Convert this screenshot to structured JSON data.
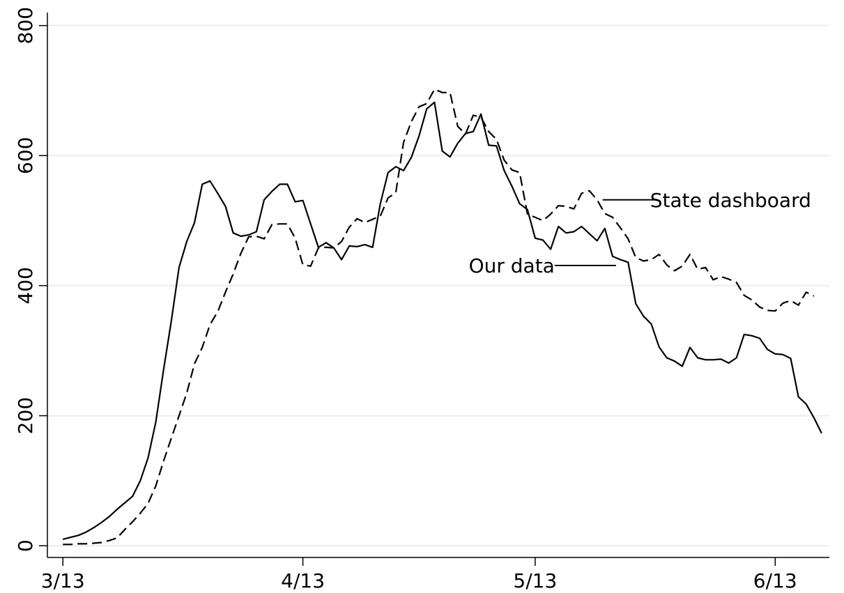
{
  "chart_data": {
    "type": "line",
    "title": "",
    "xlabel": "",
    "ylabel": "",
    "grid": true,
    "legend": "none",
    "x_ticks": [
      "3/13",
      "4/13",
      "5/13",
      "6/13"
    ],
    "x_tick_dates": [
      "2020-03-13",
      "2020-04-13",
      "2020-05-13",
      "2020-06-13"
    ],
    "xlim": [
      "2020-03-11",
      "2020-06-20"
    ],
    "y_ticks": [
      0,
      200,
      400,
      600,
      800
    ],
    "ylim": [
      -18,
      820
    ],
    "series": [
      {
        "name": "Our data",
        "style": "solid",
        "points": [
          [
            "2020-03-13",
            10
          ],
          [
            "2020-03-14",
            13
          ],
          [
            "2020-03-15",
            16
          ],
          [
            "2020-03-16",
            21
          ],
          [
            "2020-03-17",
            28
          ],
          [
            "2020-03-18",
            36
          ],
          [
            "2020-03-19",
            45
          ],
          [
            "2020-03-20",
            56
          ],
          [
            "2020-03-21",
            66
          ],
          [
            "2020-03-22",
            76
          ],
          [
            "2020-03-23",
            100
          ],
          [
            "2020-03-24",
            135
          ],
          [
            "2020-03-25",
            190
          ],
          [
            "2020-03-26",
            270
          ],
          [
            "2020-03-27",
            345
          ],
          [
            "2020-03-28",
            428
          ],
          [
            "2020-03-29",
            468
          ],
          [
            "2020-03-30",
            497
          ],
          [
            "2020-03-31",
            556
          ],
          [
            "2020-04-01",
            561
          ],
          [
            "2020-04-02",
            542
          ],
          [
            "2020-04-03",
            522
          ],
          [
            "2020-04-04",
            481
          ],
          [
            "2020-04-05",
            476
          ],
          [
            "2020-04-06",
            478
          ],
          [
            "2020-04-07",
            483
          ],
          [
            "2020-04-08",
            532
          ],
          [
            "2020-04-09",
            545
          ],
          [
            "2020-04-10",
            556
          ],
          [
            "2020-04-11",
            556
          ],
          [
            "2020-04-12",
            529
          ],
          [
            "2020-04-13",
            531
          ],
          [
            "2020-04-14",
            495
          ],
          [
            "2020-04-15",
            459
          ],
          [
            "2020-04-16",
            466
          ],
          [
            "2020-04-17",
            458
          ],
          [
            "2020-04-18",
            440
          ],
          [
            "2020-04-19",
            461
          ],
          [
            "2020-04-20",
            460
          ],
          [
            "2020-04-21",
            463
          ],
          [
            "2020-04-22",
            459
          ],
          [
            "2020-04-23",
            526
          ],
          [
            "2020-04-24",
            574
          ],
          [
            "2020-04-25",
            583
          ],
          [
            "2020-04-26",
            577
          ],
          [
            "2020-04-27",
            597
          ],
          [
            "2020-04-28",
            630
          ],
          [
            "2020-04-29",
            672
          ],
          [
            "2020-04-30",
            682
          ],
          [
            "2020-05-01",
            607
          ],
          [
            "2020-05-02",
            598
          ],
          [
            "2020-05-03",
            619
          ],
          [
            "2020-05-04",
            634
          ],
          [
            "2020-05-05",
            637
          ],
          [
            "2020-05-06",
            664
          ],
          [
            "2020-05-07",
            616
          ],
          [
            "2020-05-08",
            615
          ],
          [
            "2020-05-09",
            577
          ],
          [
            "2020-05-10",
            553
          ],
          [
            "2020-05-11",
            526
          ],
          [
            "2020-05-12",
            517
          ],
          [
            "2020-05-13",
            473
          ],
          [
            "2020-05-14",
            470
          ],
          [
            "2020-05-15",
            456
          ],
          [
            "2020-05-16",
            491
          ],
          [
            "2020-05-17",
            481
          ],
          [
            "2020-05-18",
            483
          ],
          [
            "2020-05-19",
            491
          ],
          [
            "2020-05-20",
            480
          ],
          [
            "2020-05-21",
            469
          ],
          [
            "2020-05-22",
            488
          ],
          [
            "2020-05-23",
            445
          ],
          [
            "2020-05-24",
            440
          ],
          [
            "2020-05-25",
            436
          ],
          [
            "2020-05-26",
            372
          ],
          [
            "2020-05-27",
            353
          ],
          [
            "2020-05-28",
            341
          ],
          [
            "2020-05-29",
            306
          ],
          [
            "2020-05-30",
            289
          ],
          [
            "2020-05-31",
            284
          ],
          [
            "2020-06-01",
            276
          ],
          [
            "2020-06-02",
            305
          ],
          [
            "2020-06-03",
            289
          ],
          [
            "2020-06-04",
            286
          ],
          [
            "2020-06-05",
            286
          ],
          [
            "2020-06-06",
            287
          ],
          [
            "2020-06-07",
            281
          ],
          [
            "2020-06-08",
            289
          ],
          [
            "2020-06-09",
            325
          ],
          [
            "2020-06-10",
            323
          ],
          [
            "2020-06-11",
            319
          ],
          [
            "2020-06-12",
            302
          ],
          [
            "2020-06-13",
            295
          ],
          [
            "2020-06-14",
            294
          ],
          [
            "2020-06-15",
            288
          ],
          [
            "2020-06-16",
            229
          ],
          [
            "2020-06-17",
            218
          ],
          [
            "2020-06-18",
            197
          ],
          [
            "2020-06-19",
            173
          ]
        ]
      },
      {
        "name": "State dashboard",
        "style": "dashed",
        "points": [
          [
            "2020-03-13",
            2
          ],
          [
            "2020-03-14",
            2
          ],
          [
            "2020-03-15",
            3
          ],
          [
            "2020-03-16",
            3
          ],
          [
            "2020-03-17",
            4
          ],
          [
            "2020-03-18",
            5
          ],
          [
            "2020-03-19",
            8
          ],
          [
            "2020-03-20",
            12
          ],
          [
            "2020-03-21",
            25
          ],
          [
            "2020-03-22",
            37
          ],
          [
            "2020-03-23",
            50
          ],
          [
            "2020-03-24",
            65
          ],
          [
            "2020-03-25",
            92
          ],
          [
            "2020-03-26",
            130
          ],
          [
            "2020-03-27",
            165
          ],
          [
            "2020-03-28",
            200
          ],
          [
            "2020-03-29",
            235
          ],
          [
            "2020-03-30",
            280
          ],
          [
            "2020-03-31",
            305
          ],
          [
            "2020-04-01",
            340
          ],
          [
            "2020-04-02",
            360
          ],
          [
            "2020-04-03",
            390
          ],
          [
            "2020-04-04",
            418
          ],
          [
            "2020-04-05",
            450
          ],
          [
            "2020-04-06",
            475
          ],
          [
            "2020-04-07",
            476
          ],
          [
            "2020-04-08",
            472
          ],
          [
            "2020-04-09",
            494
          ],
          [
            "2020-04-10",
            495
          ],
          [
            "2020-04-11",
            495
          ],
          [
            "2020-04-12",
            473
          ],
          [
            "2020-04-13",
            432
          ],
          [
            "2020-04-14",
            430
          ],
          [
            "2020-04-15",
            458
          ],
          [
            "2020-04-16",
            459
          ],
          [
            "2020-04-17",
            458
          ],
          [
            "2020-04-18",
            468
          ],
          [
            "2020-04-19",
            490
          ],
          [
            "2020-04-20",
            503
          ],
          [
            "2020-04-21",
            497
          ],
          [
            "2020-04-22",
            502
          ],
          [
            "2020-04-23",
            507
          ],
          [
            "2020-04-24",
            535
          ],
          [
            "2020-04-25",
            543
          ],
          [
            "2020-04-26",
            620
          ],
          [
            "2020-04-27",
            652
          ],
          [
            "2020-04-28",
            675
          ],
          [
            "2020-04-29",
            680
          ],
          [
            "2020-04-30",
            702
          ],
          [
            "2020-05-01",
            697
          ],
          [
            "2020-05-02",
            697
          ],
          [
            "2020-05-03",
            645
          ],
          [
            "2020-05-04",
            633
          ],
          [
            "2020-05-05",
            662
          ],
          [
            "2020-05-06",
            659
          ],
          [
            "2020-05-07",
            637
          ],
          [
            "2020-05-08",
            625
          ],
          [
            "2020-05-09",
            593
          ],
          [
            "2020-05-10",
            578
          ],
          [
            "2020-05-11",
            574
          ],
          [
            "2020-05-12",
            510
          ],
          [
            "2020-05-13",
            505
          ],
          [
            "2020-05-14",
            500
          ],
          [
            "2020-05-15",
            510
          ],
          [
            "2020-05-16",
            523
          ],
          [
            "2020-05-17",
            522
          ],
          [
            "2020-05-18",
            518
          ],
          [
            "2020-05-19",
            542
          ],
          [
            "2020-05-20",
            546
          ],
          [
            "2020-05-21",
            532
          ],
          [
            "2020-05-22",
            511
          ],
          [
            "2020-05-23",
            505
          ],
          [
            "2020-05-24",
            489
          ],
          [
            "2020-05-25",
            472
          ],
          [
            "2020-05-26",
            443
          ],
          [
            "2020-05-27",
            438
          ],
          [
            "2020-05-28",
            440
          ],
          [
            "2020-05-29",
            448
          ],
          [
            "2020-05-30",
            432
          ],
          [
            "2020-05-31",
            423
          ],
          [
            "2020-06-01",
            430
          ],
          [
            "2020-06-02",
            448
          ],
          [
            "2020-06-03",
            425
          ],
          [
            "2020-06-04",
            428
          ],
          [
            "2020-06-05",
            409
          ],
          [
            "2020-06-06",
            414
          ],
          [
            "2020-06-07",
            410
          ],
          [
            "2020-06-08",
            405
          ],
          [
            "2020-06-09",
            385
          ],
          [
            "2020-06-10",
            378
          ],
          [
            "2020-06-11",
            367
          ],
          [
            "2020-06-12",
            362
          ],
          [
            "2020-06-13",
            361
          ],
          [
            "2020-06-14",
            373
          ],
          [
            "2020-06-15",
            377
          ],
          [
            "2020-06-16",
            370
          ],
          [
            "2020-06-17",
            390
          ],
          [
            "2020-06-18",
            384
          ]
        ]
      }
    ],
    "annotations": [
      {
        "text": "State dashboard",
        "series": "State dashboard",
        "at": "2020-05-21"
      },
      {
        "text": "Our data",
        "series": "Our data",
        "at": "2020-05-22"
      }
    ]
  }
}
